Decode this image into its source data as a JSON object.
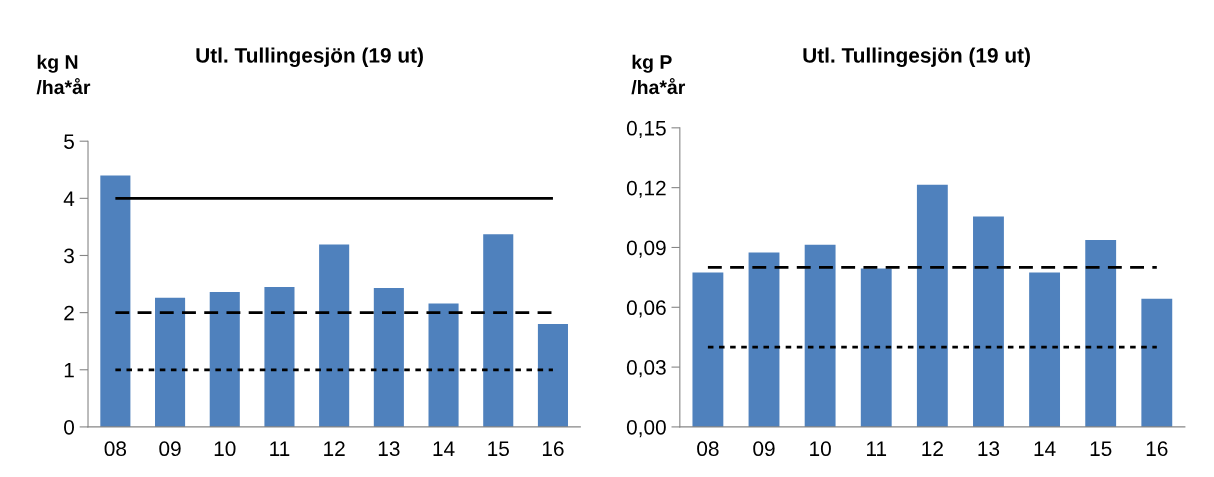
{
  "chart_data": [
    {
      "type": "bar",
      "title": "Utl. Tullingesjön (19 ut)",
      "ylabel": "kg N\n/ha*år",
      "categories": [
        "08",
        "09",
        "10",
        "11",
        "12",
        "13",
        "14",
        "15",
        "16"
      ],
      "values": [
        4.4,
        2.26,
        2.36,
        2.45,
        3.19,
        2.43,
        2.16,
        3.37,
        1.8
      ],
      "color": "#4f81bd",
      "ylim": [
        0,
        5
      ],
      "yticks": [
        0,
        1,
        2,
        3,
        4,
        5
      ],
      "grid": false,
      "legend": false,
      "ref_lines": [
        {
          "axis": "y",
          "value": 4,
          "line_style": "solid",
          "color": "#000000"
        },
        {
          "axis": "y",
          "value": 2,
          "line_style": "dashed",
          "color": "#000000"
        },
        {
          "axis": "y",
          "value": 1,
          "line_style": "dotted",
          "color": "#000000"
        }
      ]
    },
    {
      "type": "bar",
      "title": "Utl. Tullingesjön (19 ut)",
      "ylabel": "kg P\n/ha*år",
      "categories": [
        "08",
        "09",
        "10",
        "11",
        "12",
        "13",
        "14",
        "15",
        "16"
      ],
      "values": [
        0.0774,
        0.0875,
        0.0914,
        0.0794,
        0.1215,
        0.1055,
        0.0774,
        0.0937,
        0.0643
      ],
      "color": "#4f81bd",
      "ylim": [
        0,
        0.15
      ],
      "yticks": [
        {
          "value": 0,
          "label": "0,00"
        },
        {
          "value": 0.03,
          "label": "0,03"
        },
        {
          "value": 0.06,
          "label": "0,06"
        },
        {
          "value": 0.09,
          "label": "0,09"
        },
        {
          "value": 0.12,
          "label": "0,12"
        },
        {
          "value": 0.15,
          "label": "0,15"
        }
      ],
      "grid": false,
      "legend": false,
      "ref_lines": [
        {
          "axis": "y",
          "value": 0.08,
          "line_style": "dashed",
          "color": "#000000"
        },
        {
          "axis": "y",
          "value": 0.04,
          "line_style": "dotted",
          "color": "#000000"
        }
      ]
    }
  ]
}
